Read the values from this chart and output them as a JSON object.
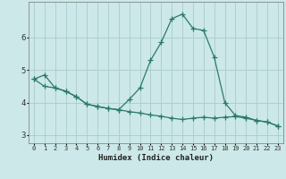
{
  "title": "",
  "xlabel": "Humidex (Indice chaleur)",
  "ylabel": "",
  "bg_color": "#cce8e8",
  "grid_color": "#aacccc",
  "line_color": "#2a7a6a",
  "marker": "+",
  "x_values": [
    0,
    1,
    2,
    3,
    4,
    5,
    6,
    7,
    8,
    9,
    10,
    11,
    12,
    13,
    14,
    15,
    16,
    17,
    18,
    19,
    20,
    21,
    22,
    23
  ],
  "line1": [
    4.72,
    4.85,
    4.45,
    4.35,
    4.18,
    3.95,
    3.88,
    3.82,
    3.78,
    4.1,
    4.45,
    5.3,
    5.85,
    6.58,
    6.72,
    6.28,
    6.22,
    5.4,
    4.0,
    3.6,
    3.55,
    3.45,
    3.4,
    3.28
  ],
  "line2": [
    4.72,
    4.5,
    4.45,
    4.35,
    4.18,
    3.95,
    3.88,
    3.82,
    3.78,
    3.72,
    3.68,
    3.62,
    3.58,
    3.52,
    3.48,
    3.52,
    3.55,
    3.52,
    3.55,
    3.57,
    3.52,
    3.45,
    3.4,
    3.28
  ],
  "ylim": [
    2.75,
    7.1
  ],
  "yticks": [
    3,
    4,
    5,
    6
  ],
  "xlim": [
    -0.5,
    23.5
  ]
}
